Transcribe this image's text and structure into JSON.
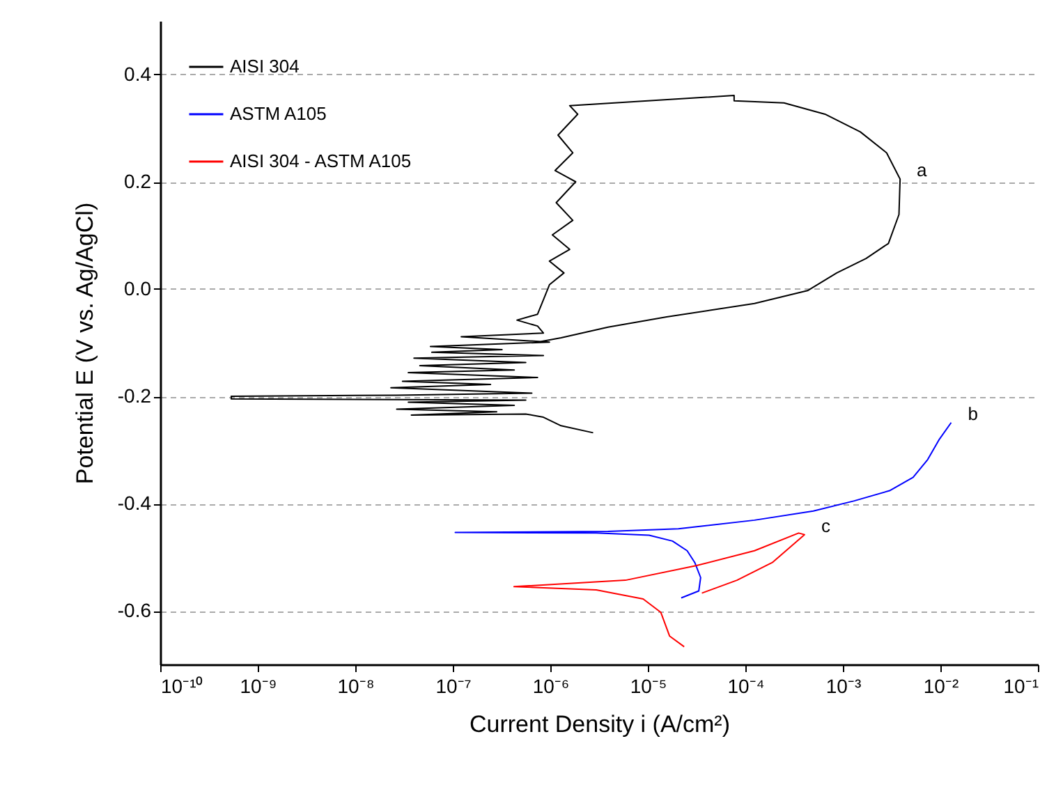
{
  "chart_data": {
    "type": "line",
    "xlabel": "Current Density i (A/cm²)",
    "ylabel": "Potential E (V vs. Ag/AgCl)",
    "log": "x",
    "xlim": [
      1e-10,
      0.1
    ],
    "ylim": [
      -0.7,
      0.5
    ],
    "xticks": [
      {
        "value": 1e-10,
        "label": "10⁻¹⁰"
      },
      {
        "value": 1e-09,
        "label": "10⁻⁹"
      },
      {
        "value": 1e-08,
        "label": "10⁻⁸"
      },
      {
        "value": 1e-07,
        "label": "10⁻⁷"
      },
      {
        "value": 1e-06,
        "label": "10⁻⁶"
      },
      {
        "value": 1e-05,
        "label": "10⁻⁵"
      },
      {
        "value": 0.0001,
        "label": "10⁻⁴"
      },
      {
        "value": 0.001,
        "label": "10⁻³"
      },
      {
        "value": 0.01,
        "label": "10⁻²"
      },
      {
        "value": 0.1,
        "label": "10⁻¹"
      }
    ],
    "yticks": [
      -0.6,
      -0.4,
      -0.2,
      {
        "value": 0,
        "label": "0.0"
      },
      0.2,
      0.4
    ],
    "grid": "y",
    "legend": "top left",
    "marker": "none",
    "line_style": "solid",
    "annotations": [
      {
        "text": "a",
        "x": 0.00386,
        "y": 0.205
      },
      {
        "text": "b",
        "x": 0.0129,
        "y": -0.249
      },
      {
        "text": "c",
        "x": 0.000404,
        "y": -0.458
      }
    ],
    "series": [
      {
        "name": "AISI 304",
        "color": "#000000",
        "x": [
          2.75e-06,
          1.29e-06,
          8.5e-07,
          5.6e-07,
          3.76e-08,
          2.82e-07,
          2.66e-08,
          4.27e-07,
          3.5e-08,
          5.6e-07,
          5.35e-10,
          5.35e-10,
          2.66e-08,
          6.46e-07,
          2.32e-08,
          2.44e-07,
          3.05e-08,
          7.4e-07,
          3.5e-08,
          4.27e-07,
          4.6e-08,
          5.6e-07,
          4e-08,
          8.5e-07,
          6.1e-08,
          3.2e-07,
          5.9e-08,
          9.8e-07,
          1.22e-07,
          8.5e-07,
          7.4e-07,
          4.55e-07,
          7.4e-07,
          8.5e-07,
          9.8e-07,
          1.38e-06,
          9.8e-07,
          1.58e-06,
          1.05e-06,
          1.7e-06,
          1.15e-06,
          1.82e-06,
          1.12e-06,
          1.7e-06,
          1.2e-06,
          1.91e-06,
          1.58e-06,
          7.67e-05,
          7.67e-05,
          0.000249,
          0.000656,
          0.00151,
          0.00281,
          0.00386,
          0.00376,
          0.00293,
          0.00173,
          0.000865,
          0.000434,
          0.000124,
          1.56e-05,
          3.9e-06,
          1.29e-06,
          7.4e-07
        ],
        "values": [
          -0.268,
          -0.255,
          -0.239,
          -0.233,
          -0.235,
          -0.229,
          -0.224,
          -0.217,
          -0.211,
          -0.207,
          -0.205,
          -0.2,
          -0.198,
          -0.194,
          -0.184,
          -0.178,
          -0.172,
          -0.165,
          -0.156,
          -0.151,
          -0.143,
          -0.137,
          -0.129,
          -0.124,
          -0.118,
          -0.113,
          -0.107,
          -0.099,
          -0.089,
          -0.082,
          -0.069,
          -0.058,
          -0.047,
          -0.02,
          0.008,
          0.03,
          0.052,
          0.074,
          0.101,
          0.128,
          0.161,
          0.2,
          0.221,
          0.254,
          0.287,
          0.326,
          0.342,
          0.361,
          0.351,
          0.347,
          0.326,
          0.293,
          0.254,
          0.205,
          0.139,
          0.085,
          0.057,
          0.03,
          -0.003,
          -0.027,
          -0.052,
          -0.071,
          -0.091,
          -0.099
        ]
      },
      {
        "name": "ASTM A105",
        "color": "#0000ff",
        "x": [
          2.2e-05,
          3.33e-05,
          3.48e-05,
          3.03e-05,
          2.53e-05,
          1.79e-05,
          1.03e-05,
          2.96e-06,
          1.06e-07,
          3.9e-06,
          2.06e-05,
          0.000124,
          0.000498,
          0.00131,
          0.00301,
          0.00525,
          0.00741,
          0.00977,
          0.0129
        ],
        "values": [
          -0.576,
          -0.563,
          -0.538,
          -0.51,
          -0.488,
          -0.47,
          -0.459,
          -0.455,
          -0.454,
          -0.452,
          -0.447,
          -0.431,
          -0.414,
          -0.395,
          -0.376,
          -0.351,
          -0.318,
          -0.28,
          -0.249
        ]
      },
      {
        "name": "AISI 304 - ASTM A105",
        "color": "#ff0000",
        "x": [
          2.36e-05,
          1.67e-05,
          1.36e-05,
          8.95e-06,
          2.96e-06,
          4.25e-07,
          5.9e-06,
          3.11e-05,
          0.000124,
          0.000352,
          0.000404,
          0.000189,
          8.2e-05,
          3.58e-05
        ],
        "values": [
          -0.667,
          -0.647,
          -0.603,
          -0.578,
          -0.561,
          -0.555,
          -0.543,
          -0.516,
          -0.488,
          -0.455,
          -0.458,
          -0.51,
          -0.543,
          -0.567
        ]
      }
    ]
  }
}
